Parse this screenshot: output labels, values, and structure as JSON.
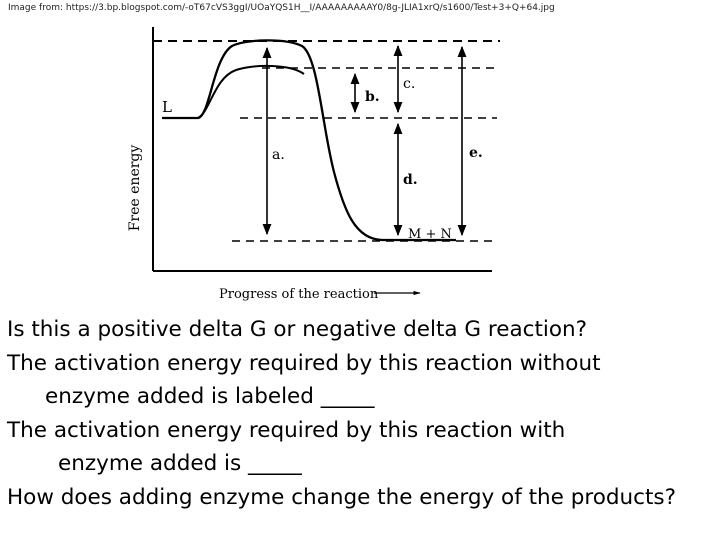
{
  "caption": "Image from: https://3.bp.blogspot.com/-oT67cVS3ggI/UOaYQS1H__I/AAAAAAAAAY0/8g-JLIA1xrQ/s1600/Test+3+Q+64.jpg",
  "diagram": {
    "y_axis_label": "Free energy",
    "x_axis_label": "Progress of the reaction",
    "reactant_label": "L",
    "products_label": "M + N",
    "labels": {
      "a": "a.",
      "b": "b.",
      "c": "c.",
      "d": "d.",
      "e": "e."
    },
    "colors": {
      "line": "#000000",
      "background": "#ffffff"
    }
  },
  "questions": [
    {
      "text": "Is this a positive delta G or negative delta G reaction?",
      "indent": 0
    },
    {
      "text": "The activation energy required by this reaction  without",
      "indent": 0
    },
    {
      "text": "enzyme added is labeled _____",
      "indent": 1
    },
    {
      "text": "The activation energy required by this reaction with",
      "indent": 0
    },
    {
      "text": "enzyme added is _____",
      "indent": 2
    },
    {
      "text": "How does adding enzyme change the energy of the products?",
      "indent": 0
    }
  ]
}
